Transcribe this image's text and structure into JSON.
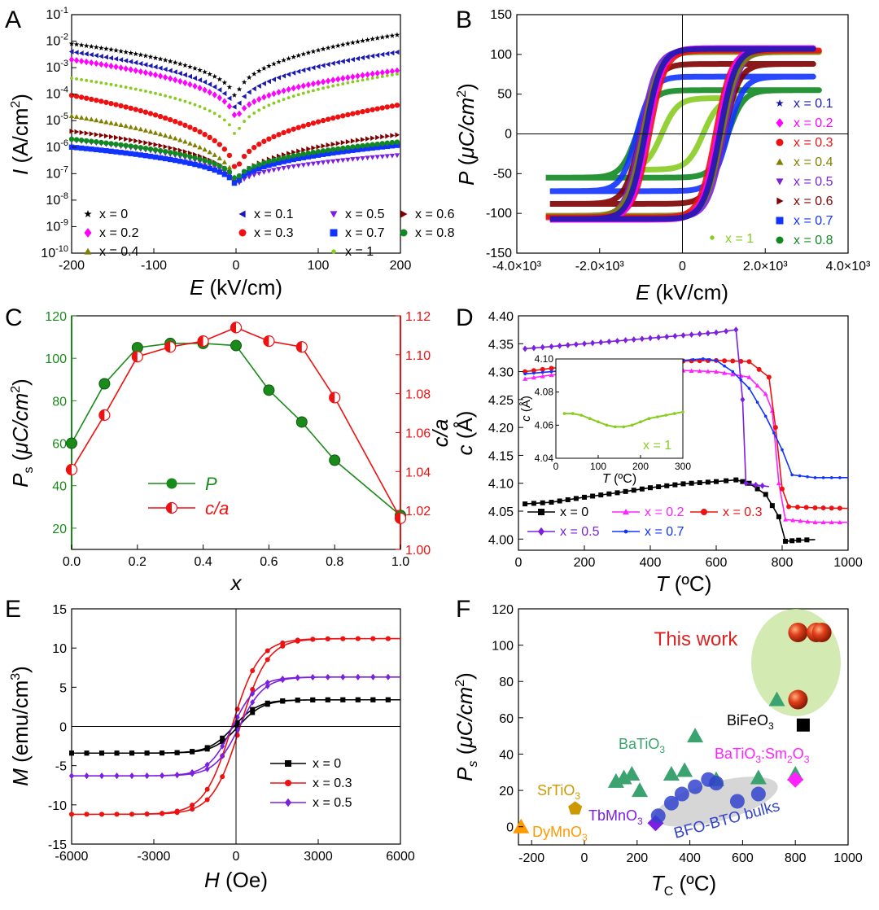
{
  "chart_data": [
    {
      "panel": "A",
      "type": "scatter",
      "xlabel": "E (kV/cm)",
      "xlabel_var": "E",
      "xlabel_unit": "(kV/cm)",
      "ylabel": "I (A/cm2)",
      "ylabel_var": "I",
      "ylabel_unit": " (A/cm",
      "yscale": "log",
      "xlim": [
        -200,
        200
      ],
      "ylim_exp": [
        -10,
        -1
      ],
      "xticks": [
        "-200",
        "-100",
        "0",
        "100",
        "200"
      ],
      "yticks_exp": [
        "-10",
        "-9",
        "-8",
        "-7",
        "-6",
        "-5",
        "-4",
        "-3",
        "-2",
        "-1"
      ],
      "series": [
        {
          "name": "x = 0",
          "color": "#000000",
          "marker": "star",
          "vL": 0.008,
          "vR": 0.018,
          "v0": 3e-05,
          "lx": 20,
          "ly": 250
        },
        {
          "name": "x = 0.1",
          "color": "#1a1ab0",
          "marker": "tri-left",
          "vL": 0.004,
          "vR": 0.004,
          "v0": 1e-05,
          "lx": 210,
          "ly": 250
        },
        {
          "name": "x = 0.2",
          "color": "#ff00ff",
          "marker": "diamond",
          "vL": 0.002,
          "vR": 0.0008,
          "v0": 5e-06,
          "lx": 20,
          "ly": 273
        },
        {
          "name": "x = 0.3",
          "color": "#ee1111",
          "marker": "circle",
          "vL": 9e-05,
          "vR": 4e-05,
          "v0": 4e-08,
          "lx": 210,
          "ly": 273
        },
        {
          "name": "x = 0.4",
          "color": "#808000",
          "marker": "tri-up",
          "vL": 1.5e-05,
          "vR": 1.5e-06,
          "v0": 2e-08,
          "lx": 20,
          "ly": 296
        },
        {
          "name": "x = 0.5",
          "color": "#7b1fe0",
          "marker": "tri-down",
          "vL": 1.8e-06,
          "vR": 5e-07,
          "v0": 2e-08,
          "lx": 322,
          "ly": 250
        },
        {
          "name": "x = 0.6",
          "color": "#800000",
          "marker": "tri-right",
          "vL": 4e-06,
          "vR": 3e-06,
          "v0": 2e-08,
          "lx": 408,
          "ly": 250
        },
        {
          "name": "x = 0.7",
          "color": "#1133ff",
          "marker": "square",
          "vL": 1e-06,
          "vR": 1.2e-06,
          "v0": 2e-08,
          "lx": 322,
          "ly": 273
        },
        {
          "name": "x = 0.8",
          "color": "#118822",
          "marker": "circle",
          "vL": 2e-06,
          "vR": 1.6e-06,
          "v0": 3e-08,
          "lx": 408,
          "ly": 273
        },
        {
          "name": "x = 1",
          "color": "#88cc22",
          "marker": "dot",
          "vL": 0.0004,
          "vR": 0.0006,
          "v0": 1e-06,
          "lx": 322,
          "ly": 296
        }
      ]
    },
    {
      "panel": "B",
      "type": "line",
      "xlabel": "E (kV/cm)",
      "xlabel_var": "E",
      "xlabel_unit": "(kV/cm)",
      "ylabel": "P (μC/cm2)",
      "ylabel_var": "P",
      "ylabel_unit": "μC/cm",
      "xlim": [
        -4000,
        4000
      ],
      "ylim": [
        -150,
        150
      ],
      "xticks": [
        "-4.0×10³",
        "-2.0×10³",
        "0",
        "2.0×10³",
        "4.0×10³"
      ],
      "yticks": [
        "-150",
        "-100",
        "-50",
        "0",
        "50",
        "100",
        "150"
      ],
      "series": [
        {
          "name": "x = 0.1",
          "color": "#1a1ab0",
          "Ps": 107,
          "Ec": 900,
          "Emax": 3200
        },
        {
          "name": "x = 0.2",
          "color": "#ff00ff",
          "Ps": 108,
          "Ec": 850,
          "Emax": 3200
        },
        {
          "name": "x = 0.3",
          "color": "#ee1111",
          "Ps": 105,
          "Ec": 800,
          "Emax": 3300
        },
        {
          "name": "x = 0.4",
          "color": "#808000",
          "Ps": 103,
          "Ec": 950,
          "Emax": 3300
        },
        {
          "name": "x = 0.5",
          "color": "#7b1fe0",
          "Ps": 105,
          "Ec": 1000,
          "Emax": 3100
        },
        {
          "name": "x = 0.6",
          "color": "#800000",
          "Ps": 88,
          "Ec": 1000,
          "Emax": 3200
        },
        {
          "name": "x = 0.7",
          "color": "#1133ff",
          "Ps": 72,
          "Ec": 1100,
          "Emax": 3200
        },
        {
          "name": "x = 0.8",
          "color": "#118822",
          "Ps": 55,
          "Ec": 1100,
          "Emax": 3300
        },
        {
          "name": "x = 1",
          "color": "#88cc22",
          "Ps": 45,
          "Ec": 500,
          "Emax": 1300
        }
      ]
    },
    {
      "panel": "C",
      "type": "line",
      "xlabel": "x",
      "ylabel": "Ps (μC/cm2)",
      "ylabel_main": "P",
      "ylabel_sub": "s",
      "ylabel_unit": "μC/cm",
      "y2label": "c/a",
      "xlim": [
        0,
        1
      ],
      "ylim": [
        10,
        120
      ],
      "y2lim": [
        1.0,
        1.12
      ],
      "xticks": [
        "0.0",
        "0.2",
        "0.4",
        "0.6",
        "0.8",
        "1.0"
      ],
      "yticks": [
        "20",
        "40",
        "60",
        "80",
        "100",
        "120"
      ],
      "y2ticks": [
        "1.00",
        "1.02",
        "1.04",
        "1.06",
        "1.08",
        "1.10",
        "1.12"
      ],
      "x": [
        0,
        0.1,
        0.2,
        0.3,
        0.4,
        0.5,
        0.6,
        0.7,
        0.8,
        1.0
      ],
      "series": [
        {
          "name": "P",
          "color": "#1a8a1a",
          "values": [
            60,
            88,
            105,
            107,
            107,
            106,
            85,
            70,
            52,
            26
          ],
          "axis": "left"
        },
        {
          "name": "c/a",
          "color": "#ee1111",
          "values": [
            1.041,
            1.069,
            1.099,
            1.104,
            1.107,
            1.114,
            1.107,
            1.104,
            1.078,
            1.016
          ],
          "axis": "right"
        }
      ]
    },
    {
      "panel": "D",
      "type": "line",
      "xlabel": "T (ºC)",
      "xlabel_var": "T",
      "xlabel_unit": "(ºC)",
      "ylabel": "c (Å)",
      "ylabel_var": "c",
      "ylabel_unit": "(Å)",
      "xlim": [
        0,
        1000
      ],
      "ylim": [
        3.98,
        4.4
      ],
      "xticks": [
        "0",
        "200",
        "400",
        "600",
        "800",
        "1000"
      ],
      "yticks": [
        "4.00",
        "4.05",
        "4.10",
        "4.15",
        "4.20",
        "4.25",
        "4.30",
        "4.35",
        "4.40"
      ],
      "series": [
        {
          "name": "x = 0",
          "color": "#000000",
          "marker": "square",
          "points": [
            [
              20,
              4.063
            ],
            [
              100,
              4.066
            ],
            [
              200,
              4.075
            ],
            [
              300,
              4.083
            ],
            [
              400,
              4.092
            ],
            [
              500,
              4.099
            ],
            [
              600,
              4.103
            ],
            [
              660,
              4.106
            ],
            [
              700,
              4.1
            ],
            [
              750,
              4.08
            ],
            [
              790,
              4.04
            ],
            [
              810,
              3.996
            ],
            [
              850,
              3.998
            ],
            [
              900,
              3.999
            ]
          ]
        },
        {
          "name": "x = 0.2",
          "color": "#ff22ff",
          "marker": "tri",
          "points": [
            [
              20,
              4.287
            ],
            [
              100,
              4.294
            ],
            [
              200,
              4.298
            ],
            [
              300,
              4.301
            ],
            [
              400,
              4.302
            ],
            [
              500,
              4.302
            ],
            [
              600,
              4.3
            ],
            [
              700,
              4.29
            ],
            [
              750,
              4.26
            ],
            [
              770,
              4.23
            ],
            [
              790,
              4.1
            ],
            [
              810,
              4.035
            ],
            [
              900,
              4.03
            ],
            [
              1000,
              4.03
            ]
          ]
        },
        {
          "name": "x = 0.3",
          "color": "#ee1111",
          "marker": "circle",
          "points": [
            [
              20,
              4.3
            ],
            [
              100,
              4.306
            ],
            [
              200,
              4.312
            ],
            [
              300,
              4.316
            ],
            [
              400,
              4.318
            ],
            [
              500,
              4.319
            ],
            [
              600,
              4.32
            ],
            [
              700,
              4.318
            ],
            [
              760,
              4.29
            ],
            [
              780,
              4.2
            ],
            [
              800,
              4.09
            ],
            [
              820,
              4.058
            ],
            [
              900,
              4.056
            ],
            [
              1000,
              4.055
            ]
          ]
        },
        {
          "name": "x = 0.5",
          "color": "#7b1fe0",
          "marker": "diamond",
          "points": [
            [
              20,
              4.341
            ],
            [
              100,
              4.345
            ],
            [
              200,
              4.35
            ],
            [
              300,
              4.355
            ],
            [
              400,
              4.36
            ],
            [
              500,
              4.365
            ],
            [
              600,
              4.37
            ],
            [
              660,
              4.375
            ],
            [
              680,
              4.25
            ],
            [
              690,
              4.1
            ],
            [
              720,
              4.097
            ],
            [
              760,
              4.094
            ]
          ]
        },
        {
          "name": "x = 0.7",
          "color": "#1133ff",
          "marker": "dot",
          "points": [
            [
              20,
              4.296
            ],
            [
              100,
              4.3
            ],
            [
              200,
              4.305
            ],
            [
              300,
              4.31
            ],
            [
              400,
              4.315
            ],
            [
              500,
              4.32
            ],
            [
              560,
              4.323
            ],
            [
              600,
              4.32
            ],
            [
              650,
              4.3
            ],
            [
              700,
              4.27
            ],
            [
              750,
              4.22
            ],
            [
              800,
              4.16
            ],
            [
              830,
              4.115
            ],
            [
              900,
              4.11
            ],
            [
              1000,
              4.11
            ]
          ]
        }
      ],
      "inset": {
        "xlabel": "T (ºC)",
        "xlabel_var": "T",
        "xlabel_unit": "(ºC)",
        "ylabel": "c (Å)",
        "ylabel_var": "c",
        "ylabel_unit": "(Å)",
        "xlim": [
          0,
          300
        ],
        "ylim": [
          4.04,
          4.1
        ],
        "xticks": [
          "0",
          "100",
          "200",
          "300"
        ],
        "yticks": [
          "4.04",
          "4.06",
          "4.08",
          "4.10"
        ],
        "series": [
          {
            "name": "x = 1",
            "color": "#88cc22",
            "points": [
              [
                20,
                4.067
              ],
              [
                40,
                4.067
              ],
              [
                60,
                4.066
              ],
              [
                80,
                4.064
              ],
              [
                100,
                4.062
              ],
              [
                120,
                4.06
              ],
              [
                140,
                4.059
              ],
              [
                160,
                4.059
              ],
              [
                180,
                4.06
              ],
              [
                200,
                4.062
              ],
              [
                220,
                4.064
              ],
              [
                240,
                4.065
              ],
              [
                260,
                4.066
              ],
              [
                280,
                4.067
              ],
              [
                300,
                4.068
              ]
            ]
          }
        ]
      }
    },
    {
      "panel": "E",
      "type": "line",
      "xlabel": "H (Oe)",
      "xlabel_var": "H",
      "xlabel_unit": "(Oe)",
      "ylabel": "M (emu/cm3)",
      "ylabel_var": "M",
      "ylabel_unit": "(emu/cm",
      "xlim": [
        -6000,
        6000
      ],
      "ylim": [
        -15,
        15
      ],
      "xticks": [
        "-6000",
        "-3000",
        "0",
        "3000",
        "6000"
      ],
      "yticks": [
        "-15",
        "-10",
        "-5",
        "0",
        "5",
        "10",
        "15"
      ],
      "series": [
        {
          "name": "x = 0",
          "color": "#000000",
          "marker": "square",
          "Ms": 3.4,
          "Hc": 80,
          "width": 900
        },
        {
          "name": "x = 0.3",
          "color": "#ee1111",
          "marker": "circle",
          "Ms": 11.2,
          "Hc": 150,
          "width": 1000
        },
        {
          "name": "x = 0.5",
          "color": "#7b1fe0",
          "marker": "diamond",
          "Ms": 6.3,
          "Hc": 120,
          "width": 900
        }
      ]
    },
    {
      "panel": "F",
      "type": "scatter",
      "xlabel": "TC (ºC)",
      "xlabel_main": "T",
      "xlabel_sub": "C",
      "xlabel_unit": "(ºC)",
      "ylabel": "Ps (μC/cm2)",
      "ylabel_main": "P",
      "ylabel_sub": "s",
      "ylabel_unit": "μC/cm",
      "xlim": [
        -250,
        1000
      ],
      "ylim": [
        -10,
        120
      ],
      "xticks": [
        "-200",
        "0",
        "200",
        "400",
        "600",
        "800",
        "1000"
      ],
      "yticks": [
        "0",
        "20",
        "40",
        "60",
        "80",
        "100",
        "120"
      ],
      "groups": [
        {
          "name": "This work",
          "color": "#dd2222",
          "marker": "sphere",
          "points": [
            [
              810,
              107
            ],
            [
              880,
              107
            ],
            [
              900,
              107
            ],
            [
              810,
              70
            ]
          ]
        },
        {
          "name": "BiFeO3",
          "label_main": "BiFeO",
          "label_sub": "3",
          "color": "#000000",
          "marker": "square",
          "points": [
            [
              830,
              56
            ]
          ]
        },
        {
          "name": "BaTiO3",
          "label_main": "BaTiO",
          "label_sub": "3",
          "color": "#3aa36f",
          "marker": "triangle",
          "points": [
            [
              120,
              25
            ],
            [
              150,
              27
            ],
            [
              180,
              29
            ],
            [
              210,
              20
            ],
            [
              330,
              29
            ],
            [
              380,
              31
            ],
            [
              420,
              50
            ],
            [
              500,
              26
            ],
            [
              660,
              27
            ],
            [
              800,
              29
            ],
            [
              730,
              70
            ]
          ]
        },
        {
          "name": "BaTiO3:Sm2O3",
          "label_parts": [
            "BaTiO",
            "3",
            ":Sm",
            "2",
            "O",
            "3"
          ],
          "color": "#ff22ff",
          "marker": "diamond",
          "points": [
            [
              800,
              26
            ]
          ]
        },
        {
          "name": "SrTiO3",
          "label_main": "SrTiO",
          "label_sub": "3",
          "color": "#cc9900",
          "marker": "pentagon",
          "points": [
            [
              -35,
              10
            ]
          ]
        },
        {
          "name": "TbMnO3",
          "label_main": "TbMnO",
          "label_sub": "3",
          "color": "#7b1fe0",
          "marker": "diamond",
          "points": [
            [
              270,
              2
            ]
          ]
        },
        {
          "name": "DyMnO3",
          "label_main": "DyMnO",
          "label_sub": "3",
          "color": "#ff9900",
          "marker": "triangle",
          "points": [
            [
              -240,
              0
            ]
          ]
        },
        {
          "name": "BFO-BTO bulks",
          "color": "#3344cc",
          "marker": "circle-big",
          "points": [
            [
              280,
              6
            ],
            [
              330,
              13
            ],
            [
              370,
              18
            ],
            [
              420,
              22
            ],
            [
              470,
              26
            ],
            [
              500,
              24
            ],
            [
              580,
              14
            ],
            [
              660,
              18
            ]
          ]
        }
      ]
    }
  ]
}
